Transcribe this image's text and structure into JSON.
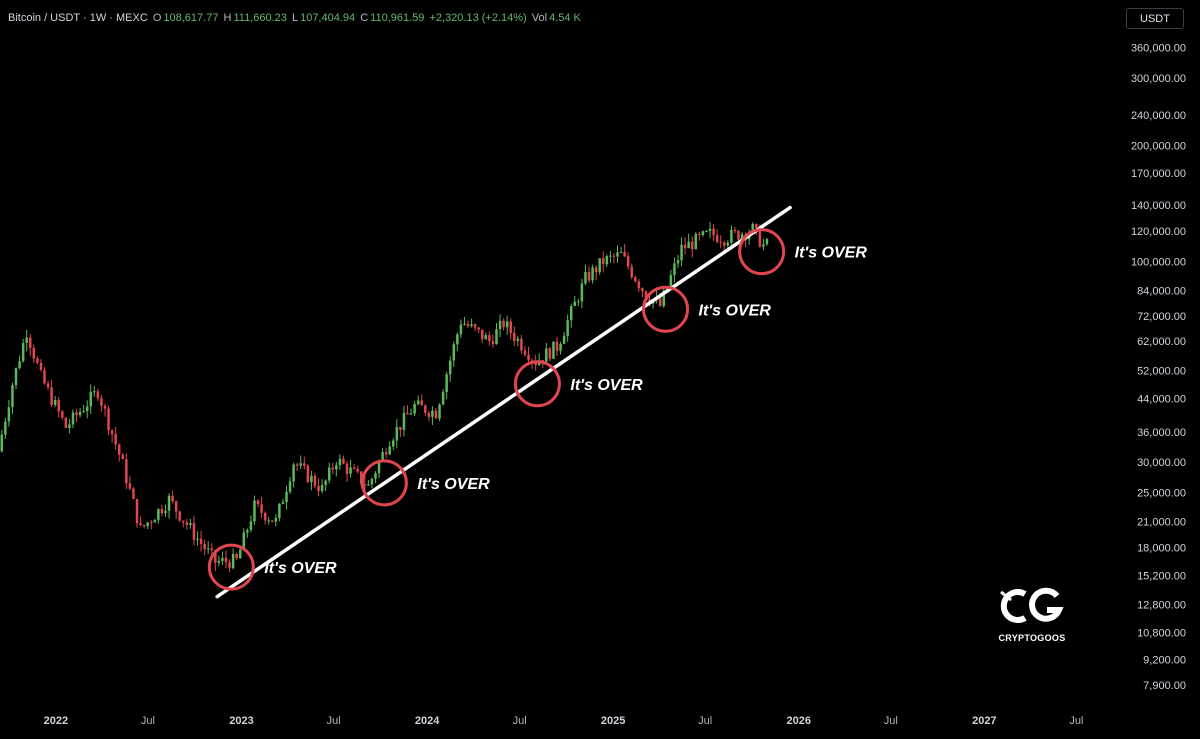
{
  "header": {
    "symbol": "Bitcoin / USDT · 1W · MEXC",
    "o_label": "O",
    "o_value": "108,617.77",
    "h_label": "H",
    "h_value": "111,660.23",
    "l_label": "L",
    "l_value": "107,404.94",
    "c_label": "C",
    "c_value": "110,961.59",
    "change": "+2,320.13 (+2.14%)",
    "vol_label": "Vol",
    "vol_value": "4.54 K"
  },
  "currency_button": "USDT",
  "logo": {
    "text": "CRYPTOGOOS"
  },
  "colors": {
    "up": "#5cb85c",
    "down": "#e0464e",
    "trendline": "#ffffff",
    "circle": "#e0464e",
    "background": "#000000"
  },
  "chart_data": {
    "type": "candlestick",
    "y_scale": "log",
    "ylim": [
      7000,
      400000
    ],
    "xlim": [
      "2021-09-13",
      "2027-09-15"
    ],
    "y_ticks": [
      {
        "value": 360000,
        "label": "360,000.00"
      },
      {
        "value": 300000,
        "label": "300,000.00"
      },
      {
        "value": 240000,
        "label": "240,000.00"
      },
      {
        "value": 200000,
        "label": "200,000.00"
      },
      {
        "value": 170000,
        "label": "170,000.00"
      },
      {
        "value": 140000,
        "label": "140,000.00"
      },
      {
        "value": 120000,
        "label": "120,000.00"
      },
      {
        "value": 100000,
        "label": "100,000.00"
      },
      {
        "value": 84000,
        "label": "84,000.00"
      },
      {
        "value": 72000,
        "label": "72,000.00"
      },
      {
        "value": 62000,
        "label": "62,000.00"
      },
      {
        "value": 52000,
        "label": "52,000.00"
      },
      {
        "value": 44000,
        "label": "44,000.00"
      },
      {
        "value": 36000,
        "label": "36,000.00"
      },
      {
        "value": 30000,
        "label": "30,000.00"
      },
      {
        "value": 25000,
        "label": "25,000.00"
      },
      {
        "value": 21000,
        "label": "21,000.00"
      },
      {
        "value": 18000,
        "label": "18,000.00"
      },
      {
        "value": 15200,
        "label": "15,200.00"
      },
      {
        "value": 12800,
        "label": "12,800.00"
      },
      {
        "value": 10800,
        "label": "10,800.00"
      },
      {
        "value": 9200,
        "label": "9,200.00"
      },
      {
        "value": 7900,
        "label": "7,900.00"
      }
    ],
    "x_ticks": [
      {
        "date": "2022-01-01",
        "label": "2022",
        "major": true
      },
      {
        "date": "2022-07-01",
        "label": "Jul",
        "major": false
      },
      {
        "date": "2023-01-01",
        "label": "2023",
        "major": true
      },
      {
        "date": "2023-07-01",
        "label": "Jul",
        "major": false
      },
      {
        "date": "2024-01-01",
        "label": "2024",
        "major": true
      },
      {
        "date": "2024-07-01",
        "label": "Jul",
        "major": false
      },
      {
        "date": "2025-01-01",
        "label": "2025",
        "major": true
      },
      {
        "date": "2025-07-01",
        "label": "Jul",
        "major": false
      },
      {
        "date": "2026-01-01",
        "label": "2026",
        "major": true
      },
      {
        "date": "2026-07-01",
        "label": "Jul",
        "major": false
      },
      {
        "date": "2027-01-01",
        "label": "2027",
        "major": true
      },
      {
        "date": "2027-07-01",
        "label": "Jul",
        "major": false
      }
    ],
    "price_path": [
      [
        "2021-09-13",
        32000
      ],
      [
        "2021-10-11",
        48000
      ],
      [
        "2021-11-08",
        66000
      ],
      [
        "2021-12-06",
        50000
      ],
      [
        "2022-01-24",
        37000
      ],
      [
        "2022-03-28",
        46000
      ],
      [
        "2022-05-16",
        29500
      ],
      [
        "2022-06-20",
        20000
      ],
      [
        "2022-08-15",
        24000
      ],
      [
        "2022-10-03",
        19500
      ],
      [
        "2022-11-14",
        16500
      ],
      [
        "2022-12-26",
        16600
      ],
      [
        "2023-01-30",
        23000
      ],
      [
        "2023-03-13",
        21000
      ],
      [
        "2023-04-17",
        30000
      ],
      [
        "2023-06-12",
        25500
      ],
      [
        "2023-07-10",
        30500
      ],
      [
        "2023-09-11",
        26000
      ],
      [
        "2023-10-23",
        34500
      ],
      [
        "2023-12-11",
        42000
      ],
      [
        "2024-01-22",
        40500
      ],
      [
        "2024-03-11",
        70000
      ],
      [
        "2024-05-06",
        62000
      ],
      [
        "2024-06-03",
        69000
      ],
      [
        "2024-08-05",
        55000
      ],
      [
        "2024-09-16",
        60000
      ],
      [
        "2024-11-11",
        90000
      ],
      [
        "2024-12-16",
        100000
      ],
      [
        "2025-01-20",
        104000
      ],
      [
        "2025-03-10",
        82000
      ],
      [
        "2025-04-07",
        76500
      ],
      [
        "2025-05-19",
        108000
      ],
      [
        "2025-07-14",
        118000
      ],
      [
        "2025-08-11",
        115000
      ],
      [
        "2025-10-06",
        121000
      ],
      [
        "2025-10-27",
        110000
      ]
    ],
    "candle_seed": 7,
    "trendline": {
      "start": [
        "2022-11-14",
        13400
      ],
      "end": [
        "2025-12-15",
        138000
      ]
    },
    "annotations": [
      {
        "date": "2022-12-12",
        "price": 16000,
        "text": "It's OVER"
      },
      {
        "date": "2023-10-09",
        "price": 26500,
        "text": "It's OVER"
      },
      {
        "date": "2024-08-05",
        "price": 48000,
        "text": "It's OVER"
      },
      {
        "date": "2025-04-14",
        "price": 75000,
        "text": "It's OVER"
      },
      {
        "date": "2025-10-20",
        "price": 106000,
        "text": "It's OVER"
      }
    ]
  }
}
